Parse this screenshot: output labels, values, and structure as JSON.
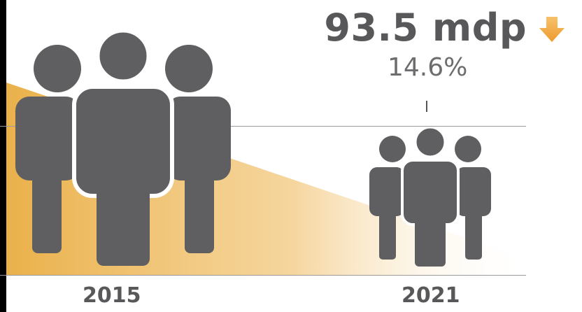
{
  "comparison": {
    "amount": "93.5 mdp",
    "change_percent": "14.6%",
    "trend": "down",
    "trend_icon": "down-arrow-icon",
    "years": [
      "2015",
      "2021"
    ]
  },
  "colors": {
    "icon_gray": "#5f5f61",
    "accent_orange": "#eab14a",
    "arrow_orange": "#f2a23a",
    "text_gray": "#58585a"
  }
}
